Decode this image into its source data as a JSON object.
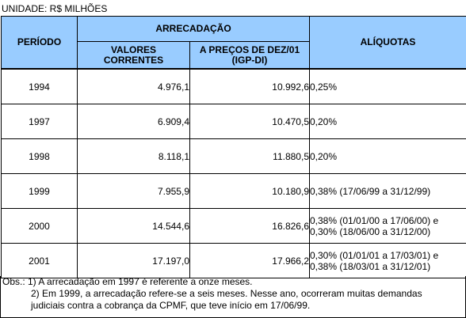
{
  "unit_label": "UNIDADE: R$ MILHÕES",
  "headers": {
    "period": "PERÍODO",
    "arrecadacao": "ARRECADAÇÃO",
    "valores_correntes_line1": "VALORES",
    "valores_correntes_line2": "CORRENTES",
    "precos_line1": "A PREÇOS DE DEZ/01",
    "precos_line2": "(IGP-DI)",
    "aliquotas": "ALÍQUOTAS"
  },
  "rows": [
    {
      "period": "1994",
      "current": "4.976,1",
      "real": "10.992,6",
      "rate_line1": "0,25%",
      "rate_line2": ""
    },
    {
      "period": "1997",
      "current": "6.909,4",
      "real": "10.470,5",
      "rate_line1": "0,20%",
      "rate_line2": ""
    },
    {
      "period": "1998",
      "current": "8.118,1",
      "real": "11.880,5",
      "rate_line1": "0,20%",
      "rate_line2": ""
    },
    {
      "period": "1999",
      "current": "7.955,9",
      "real": "10.180,9",
      "rate_line1": "0,38% (17/06/99 a 31/12/99)",
      "rate_line2": ""
    },
    {
      "period": "2000",
      "current": "14.544,6",
      "real": "16.826,6",
      "rate_line1": "0,38% (01/01/00 a 17/06/00) e",
      "rate_line2": "0,30% (18/06/00 a 31/12/00)"
    },
    {
      "period": "2001",
      "current": "17.197,0",
      "real": "17.966,2",
      "rate_line1": "0,30% (01/01/01 a 17/03/01) e",
      "rate_line2": "0,38% (18/03/01 a 31/12/01)"
    }
  ],
  "notes": {
    "line1": "Obs.: 1) A arrecadação em 1997 é referente a onze meses.",
    "line2": "2) Em 1999, a arrecadação refere-se a seis meses. Nesse ano, ocorreram muitas demandas",
    "line3": "judiciais contra a cobrança da CPMF, que teve início em 17/06/99."
  }
}
